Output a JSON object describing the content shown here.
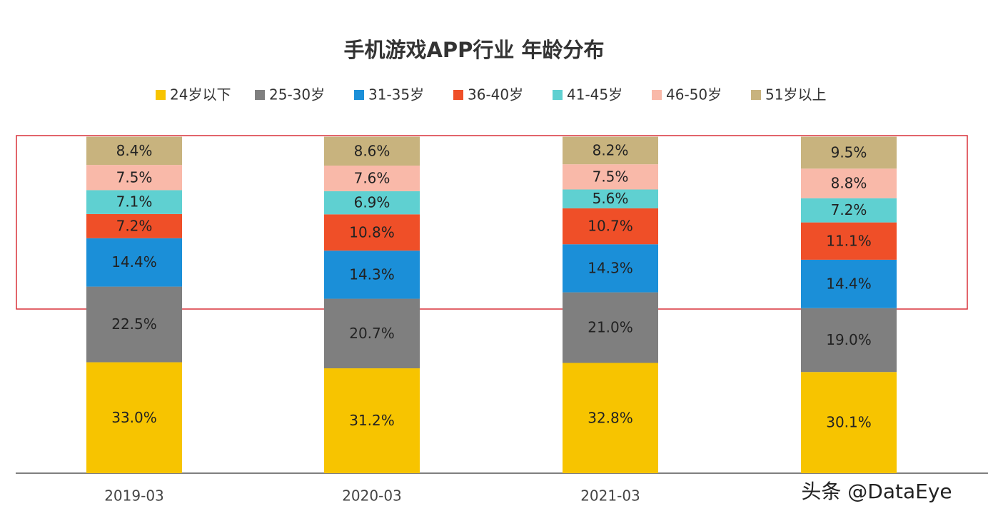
{
  "chart_data": {
    "type": "stacked_bar",
    "title": "手机游戏APP行业 年龄分布",
    "categories": [
      "2019-03",
      "2020-03",
      "2021-03",
      null
    ],
    "series": [
      {
        "name": "24岁以下",
        "color": "#f7c400",
        "values": [
          33.0,
          31.2,
          32.8,
          30.1
        ],
        "value_labels": [
          "33.0%",
          "31.2%",
          "32.8%",
          "30.1%"
        ]
      },
      {
        "name": "25-30岁",
        "color": "#7f7f7f",
        "values": [
          22.5,
          20.7,
          21.0,
          19.0
        ],
        "value_labels": [
          "22.5%",
          "20.7%",
          "21.0%",
          "19.0%"
        ]
      },
      {
        "name": "31-35岁",
        "color": "#1b8fd8",
        "values": [
          14.4,
          14.3,
          14.3,
          14.4
        ],
        "value_labels": [
          "14.4%",
          "14.3%",
          "14.3%",
          "14.4%"
        ]
      },
      {
        "name": "36-40岁",
        "color": "#ef4f28",
        "values": [
          7.2,
          10.8,
          10.7,
          11.1
        ],
        "value_labels": [
          "7.2%",
          "10.8%",
          "10.7%",
          "11.1%"
        ]
      },
      {
        "name": "41-45岁",
        "color": "#5fd0d1",
        "values": [
          7.1,
          6.9,
          5.6,
          7.2
        ],
        "value_labels": [
          "7.1%",
          "6.9%",
          "5.6%",
          "7.2%"
        ]
      },
      {
        "name": "46-50岁",
        "color": "#f9b9a9",
        "values": [
          7.5,
          7.6,
          7.5,
          8.8
        ],
        "value_labels": [
          "7.5%",
          "7.6%",
          "7.5%",
          "8.8%"
        ]
      },
      {
        "name": "51岁以上",
        "color": "#c8b37e",
        "values": [
          8.4,
          8.6,
          8.2,
          9.5
        ],
        "value_labels": [
          "8.4%",
          "8.6%",
          "8.2%",
          "9.5%"
        ]
      }
    ],
    "ylim": [
      0,
      100
    ],
    "watermark": "头条 @DataEye"
  }
}
